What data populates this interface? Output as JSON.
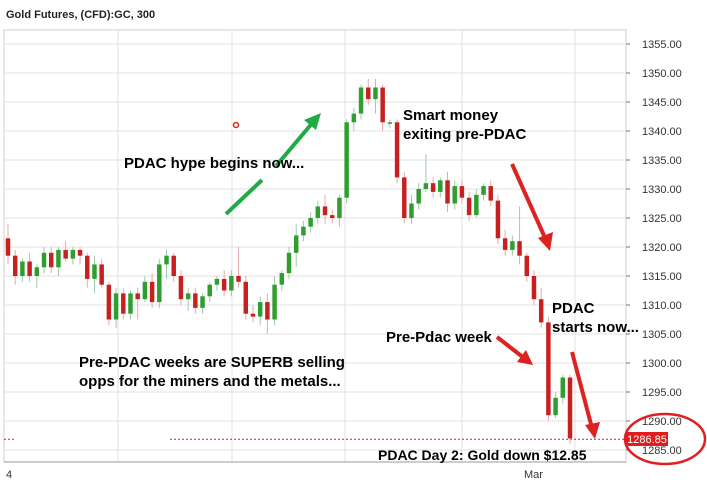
{
  "header": {
    "title": "Gold Futures, (CFD):GC, 300"
  },
  "chart_data": {
    "type": "candlestick",
    "instrument": "Gold Futures, (CFD):GC",
    "ylim": [
      1283,
      1358
    ],
    "y_ticks": [
      1285,
      1290,
      1295,
      1300,
      1305,
      1310,
      1315,
      1320,
      1325,
      1330,
      1335,
      1340,
      1345,
      1350,
      1355
    ],
    "y_tick_labels": [
      "1285.00",
      "1290.00",
      "1295.00",
      "1300.00",
      "1305.00",
      "1310.00",
      "1315.00",
      "1320.00",
      "1325.00",
      "1330.00",
      "1335.00",
      "1340.00",
      "1345.00",
      "1350.00",
      "1355.00"
    ],
    "x_tick_labels": [
      "4",
      "Mar"
    ],
    "current_price": "1286.85",
    "candles": [
      {
        "o": 1321.5,
        "h": 1324,
        "l": 1317,
        "c": 1318.5
      },
      {
        "o": 1318.5,
        "h": 1319.5,
        "l": 1313.5,
        "c": 1315
      },
      {
        "o": 1315,
        "h": 1318,
        "l": 1314,
        "c": 1317.5
      },
      {
        "o": 1317.5,
        "h": 1319,
        "l": 1314,
        "c": 1315
      },
      {
        "o": 1315,
        "h": 1317,
        "l": 1313,
        "c": 1316.5
      },
      {
        "o": 1316.5,
        "h": 1320,
        "l": 1315.5,
        "c": 1319
      },
      {
        "o": 1319,
        "h": 1320,
        "l": 1315.5,
        "c": 1316.5
      },
      {
        "o": 1316.5,
        "h": 1320,
        "l": 1315,
        "c": 1319.5
      },
      {
        "o": 1319.5,
        "h": 1321,
        "l": 1317.5,
        "c": 1318
      },
      {
        "o": 1318,
        "h": 1320,
        "l": 1317,
        "c": 1319.5
      },
      {
        "o": 1319.5,
        "h": 1320,
        "l": 1317,
        "c": 1318.5
      },
      {
        "o": 1318.5,
        "h": 1319,
        "l": 1313,
        "c": 1314.5
      },
      {
        "o": 1314.5,
        "h": 1318.5,
        "l": 1312,
        "c": 1317
      },
      {
        "o": 1317,
        "h": 1318,
        "l": 1313,
        "c": 1313.5
      },
      {
        "o": 1313.5,
        "h": 1314,
        "l": 1306.5,
        "c": 1307.5
      },
      {
        "o": 1307.5,
        "h": 1313,
        "l": 1306,
        "c": 1312
      },
      {
        "o": 1312,
        "h": 1313,
        "l": 1307.5,
        "c": 1308.5
      },
      {
        "o": 1308.5,
        "h": 1312.5,
        "l": 1307.5,
        "c": 1312
      },
      {
        "o": 1312,
        "h": 1313,
        "l": 1307.5,
        "c": 1311
      },
      {
        "o": 1311,
        "h": 1315,
        "l": 1310.5,
        "c": 1314
      },
      {
        "o": 1314,
        "h": 1315.5,
        "l": 1309.5,
        "c": 1310.5
      },
      {
        "o": 1310.5,
        "h": 1318,
        "l": 1309.5,
        "c": 1317
      },
      {
        "o": 1317,
        "h": 1319.5,
        "l": 1314.5,
        "c": 1318.5
      },
      {
        "o": 1318.5,
        "h": 1319,
        "l": 1314,
        "c": 1315
      },
      {
        "o": 1315,
        "h": 1316,
        "l": 1310,
        "c": 1311
      },
      {
        "o": 1311,
        "h": 1313,
        "l": 1309,
        "c": 1312
      },
      {
        "o": 1312,
        "h": 1313,
        "l": 1308.5,
        "c": 1309.5
      },
      {
        "o": 1309.5,
        "h": 1312,
        "l": 1308.5,
        "c": 1311.5
      },
      {
        "o": 1311.5,
        "h": 1314,
        "l": 1310.5,
        "c": 1313.5
      },
      {
        "o": 1313.5,
        "h": 1315,
        "l": 1312.5,
        "c": 1314.5
      },
      {
        "o": 1314.5,
        "h": 1316,
        "l": 1311.5,
        "c": 1312.5
      },
      {
        "o": 1312.5,
        "h": 1316,
        "l": 1311.5,
        "c": 1315
      },
      {
        "o": 1315,
        "h": 1320,
        "l": 1313,
        "c": 1314
      },
      {
        "o": 1314,
        "h": 1315,
        "l": 1307.5,
        "c": 1308.5
      },
      {
        "o": 1308.5,
        "h": 1310,
        "l": 1307,
        "c": 1308
      },
      {
        "o": 1308,
        "h": 1311.5,
        "l": 1306.5,
        "c": 1310.5
      },
      {
        "o": 1310.5,
        "h": 1312,
        "l": 1305,
        "c": 1307.5
      },
      {
        "o": 1307.5,
        "h": 1315,
        "l": 1306.5,
        "c": 1313.5
      },
      {
        "o": 1313.5,
        "h": 1316,
        "l": 1312.5,
        "c": 1315.5
      },
      {
        "o": 1315.5,
        "h": 1320,
        "l": 1314.5,
        "c": 1319
      },
      {
        "o": 1319,
        "h": 1324,
        "l": 1316.5,
        "c": 1322
      },
      {
        "o": 1322,
        "h": 1324.5,
        "l": 1321,
        "c": 1323.5
      },
      {
        "o": 1323.5,
        "h": 1326,
        "l": 1322.5,
        "c": 1325
      },
      {
        "o": 1325,
        "h": 1328,
        "l": 1324,
        "c": 1327
      },
      {
        "o": 1327,
        "h": 1329,
        "l": 1324,
        "c": 1325.5
      },
      {
        "o": 1325.5,
        "h": 1326.5,
        "l": 1324,
        "c": 1325
      },
      {
        "o": 1325,
        "h": 1329,
        "l": 1323.5,
        "c": 1328.5
      },
      {
        "o": 1328.5,
        "h": 1342,
        "l": 1327.5,
        "c": 1341.5
      },
      {
        "o": 1341.5,
        "h": 1344,
        "l": 1340,
        "c": 1343
      },
      {
        "o": 1343,
        "h": 1348,
        "l": 1342,
        "c": 1347.5
      },
      {
        "o": 1347.5,
        "h": 1349,
        "l": 1344.5,
        "c": 1345.5
      },
      {
        "o": 1345.5,
        "h": 1349,
        "l": 1343,
        "c": 1347.5
      },
      {
        "o": 1347.5,
        "h": 1348,
        "l": 1340,
        "c": 1341.5
      },
      {
        "o": 1341.5,
        "h": 1342,
        "l": 1340.5,
        "c": 1341.5
      },
      {
        "o": 1341.5,
        "h": 1342,
        "l": 1331,
        "c": 1332
      },
      {
        "o": 1332,
        "h": 1333,
        "l": 1324,
        "c": 1325
      },
      {
        "o": 1325,
        "h": 1329,
        "l": 1324,
        "c": 1327.5
      },
      {
        "o": 1327.5,
        "h": 1331,
        "l": 1326.5,
        "c": 1330
      },
      {
        "o": 1330,
        "h": 1336,
        "l": 1329.5,
        "c": 1331
      },
      {
        "o": 1331,
        "h": 1332,
        "l": 1328.5,
        "c": 1329.5
      },
      {
        "o": 1329.5,
        "h": 1332,
        "l": 1328.5,
        "c": 1331.5
      },
      {
        "o": 1331.5,
        "h": 1333,
        "l": 1326,
        "c": 1327.5
      },
      {
        "o": 1327.5,
        "h": 1331.5,
        "l": 1326.5,
        "c": 1330.5
      },
      {
        "o": 1330.5,
        "h": 1331.5,
        "l": 1327.5,
        "c": 1328.5
      },
      {
        "o": 1328.5,
        "h": 1329.5,
        "l": 1324.5,
        "c": 1325.5
      },
      {
        "o": 1325.5,
        "h": 1330,
        "l": 1325,
        "c": 1329
      },
      {
        "o": 1329,
        "h": 1331,
        "l": 1328,
        "c": 1330.5
      },
      {
        "o": 1330.5,
        "h": 1331.5,
        "l": 1327,
        "c": 1328
      },
      {
        "o": 1328,
        "h": 1329,
        "l": 1320.5,
        "c": 1321.5
      },
      {
        "o": 1321.5,
        "h": 1323,
        "l": 1318.5,
        "c": 1319.5
      },
      {
        "o": 1319.5,
        "h": 1322,
        "l": 1318.5,
        "c": 1321
      },
      {
        "o": 1321,
        "h": 1327,
        "l": 1317,
        "c": 1318.5
      },
      {
        "o": 1318.5,
        "h": 1319,
        "l": 1314,
        "c": 1315
      },
      {
        "o": 1315,
        "h": 1316,
        "l": 1310,
        "c": 1311
      },
      {
        "o": 1311,
        "h": 1313,
        "l": 1306,
        "c": 1307
      },
      {
        "o": 1307,
        "h": 1308,
        "l": 1290,
        "c": 1291
      },
      {
        "o": 1291,
        "h": 1295,
        "l": 1290.5,
        "c": 1294
      },
      {
        "o": 1294,
        "h": 1298,
        "l": 1293,
        "c": 1297.5
      },
      {
        "o": 1297.5,
        "h": 1298,
        "l": 1286,
        "c": 1287
      }
    ]
  },
  "annotations": {
    "pdac_hype": "PDAC hype begins now...",
    "smart_money_1": "Smart money",
    "smart_money_2": "exiting pre-PDAC",
    "pdac_starts_1": "PDAC",
    "pdac_starts_2": "starts now...",
    "pre_pdac_week": "Pre-Pdac week",
    "pre_pdac_weeks_1": "Pre-PDAC weeks are SUPERB selling",
    "pre_pdac_weeks_2": "opps for the miners and the metals...",
    "pdac_day2": "PDAC  Day 2: Gold down $12.85"
  },
  "colors": {
    "up": "#2e9e2e",
    "down": "#c62020",
    "arrow_green": "#22aa44",
    "arrow_red": "#dd2222",
    "price_tag": "#e31b1b",
    "grid": "#e0e0e0"
  }
}
